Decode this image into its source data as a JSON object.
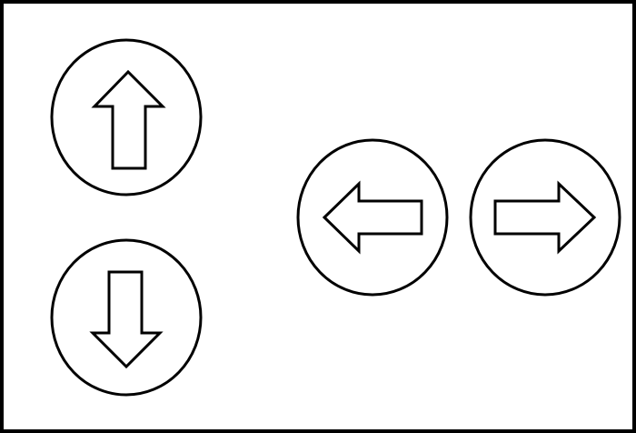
{
  "controls": {
    "buttons": [
      {
        "id": "up",
        "icon": "arrow-up-icon"
      },
      {
        "id": "down",
        "icon": "arrow-down-icon"
      },
      {
        "id": "left",
        "icon": "arrow-left-icon"
      },
      {
        "id": "right",
        "icon": "arrow-right-icon"
      }
    ]
  },
  "colors": {
    "stroke": "#000000",
    "fill": "#ffffff"
  }
}
